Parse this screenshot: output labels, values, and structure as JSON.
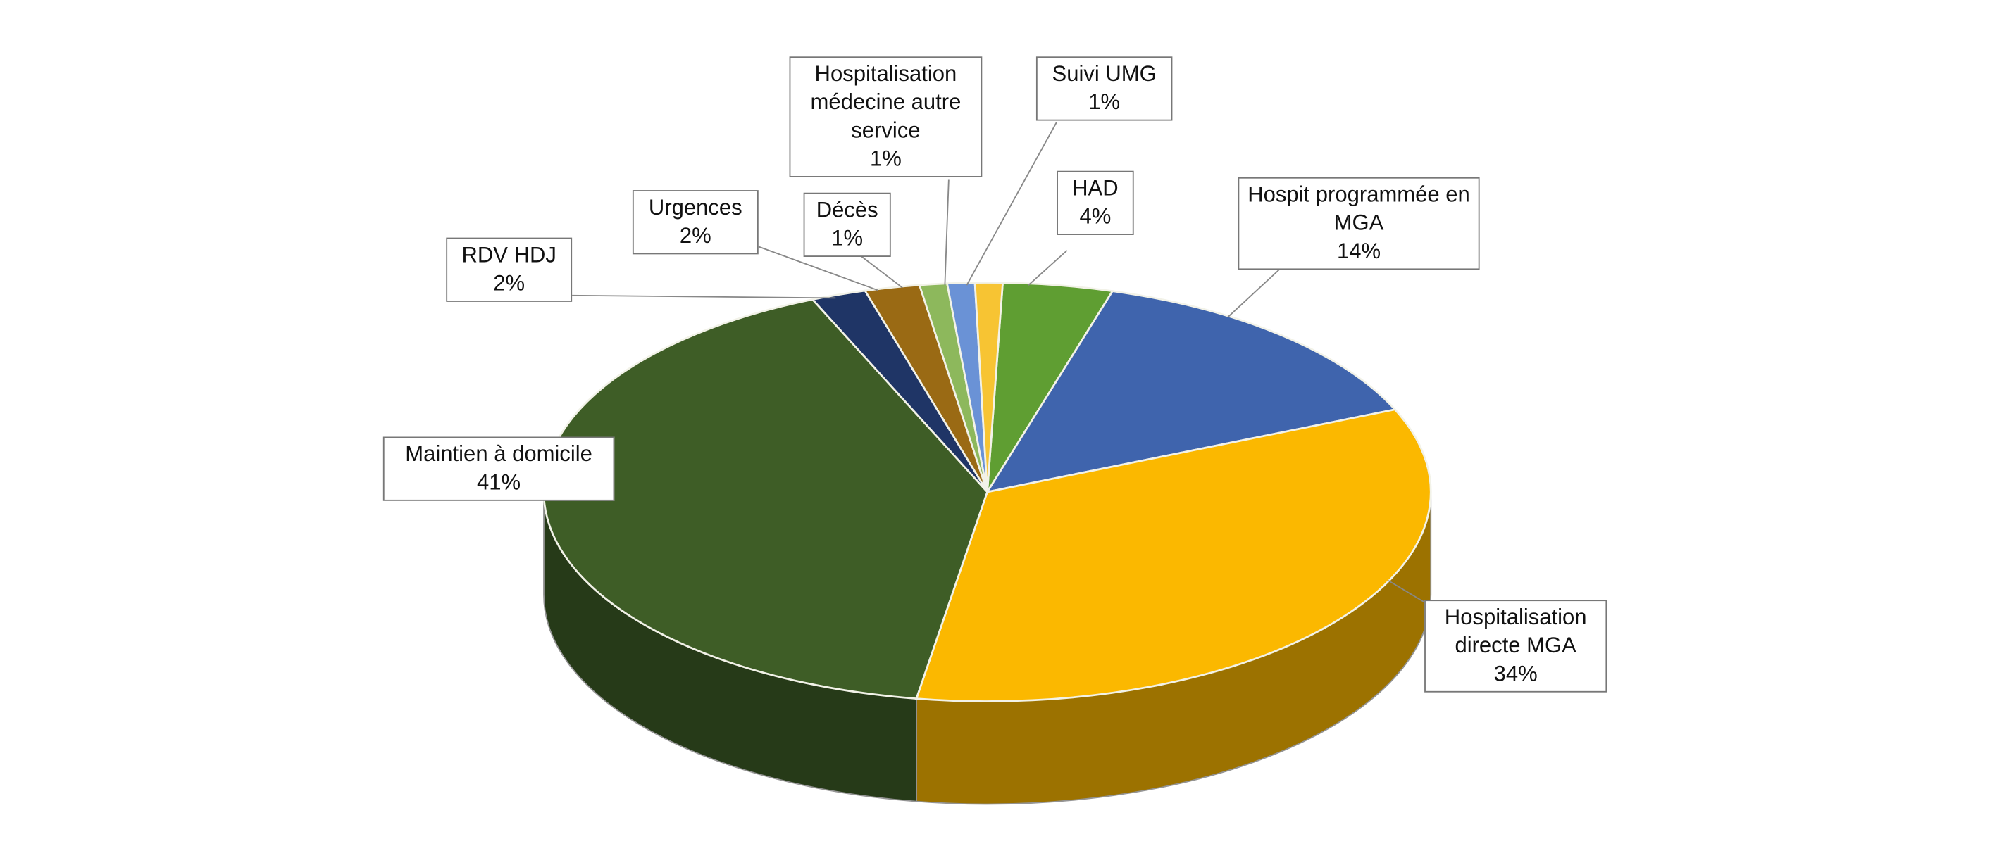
{
  "chart_data": {
    "type": "pie",
    "categories": [
      "HAD",
      "Hospit programmée en MGA",
      "Hospitalisation directe MGA",
      "Maintien à domicile",
      "RDV HDJ",
      "Urgences",
      "Décès",
      "Hospitalisation médecine autre service",
      "Suivi UMG"
    ],
    "values": [
      4,
      14,
      34,
      41,
      2,
      2,
      1,
      1,
      1
    ],
    "value_labels": [
      "4%",
      "14%",
      "34%",
      "41%",
      "2%",
      "2%",
      "1%",
      "1%",
      "1%"
    ],
    "colors": [
      "#5f9e32",
      "#3f64ad",
      "#fbb800",
      "#3e5d26",
      "#1f3566",
      "#9a6a14",
      "#8db85c",
      "#6a92d6",
      "#f7c433"
    ]
  }
}
